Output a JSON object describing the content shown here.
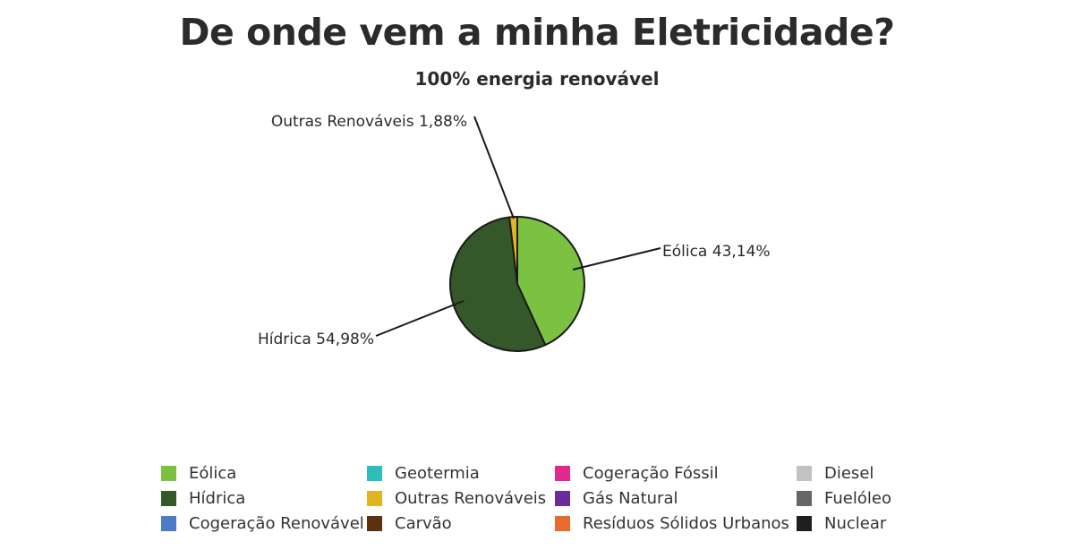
{
  "title": "De onde vem a minha Eletricidade?",
  "subtitle": "100% energia renovável",
  "chart_data": {
    "type": "pie",
    "title": "De onde vem a minha Eletricidade?",
    "subtitle": "100% energia renovável",
    "slices": [
      {
        "label": "Eólica",
        "value": 43.14,
        "display": "Eólica 43,14%",
        "color": "#7bc142"
      },
      {
        "label": "Hídrica",
        "value": 54.98,
        "display": "Hídrica 54,98%",
        "color": "#34582a"
      },
      {
        "label": "Outras Renováveis",
        "value": 1.88,
        "display": "Outras Renováveis 1,88%",
        "color": "#e0b520"
      }
    ],
    "legend": [
      {
        "label": "Eólica",
        "color": "#7bc142"
      },
      {
        "label": "Hídrica",
        "color": "#34582a"
      },
      {
        "label": "Cogeração Renovável",
        "color": "#4a7cc7"
      },
      {
        "label": "Geotermia",
        "color": "#2ebdb8"
      },
      {
        "label": "Outras Renováveis",
        "color": "#e0b520"
      },
      {
        "label": "Carvão",
        "color": "#5a3212"
      },
      {
        "label": "Cogeração Fóssil",
        "color": "#e0288f"
      },
      {
        "label": "Gás Natural",
        "color": "#6a2c9a"
      },
      {
        "label": "Resíduos Sólidos Urbanos",
        "color": "#e86a2c"
      },
      {
        "label": "Diesel",
        "color": "#c2c2c2"
      },
      {
        "label": "Fuelóleo",
        "color": "#666666"
      },
      {
        "label": "Nuclear",
        "color": "#1f1f1f"
      }
    ],
    "legend_position": "bottom"
  }
}
